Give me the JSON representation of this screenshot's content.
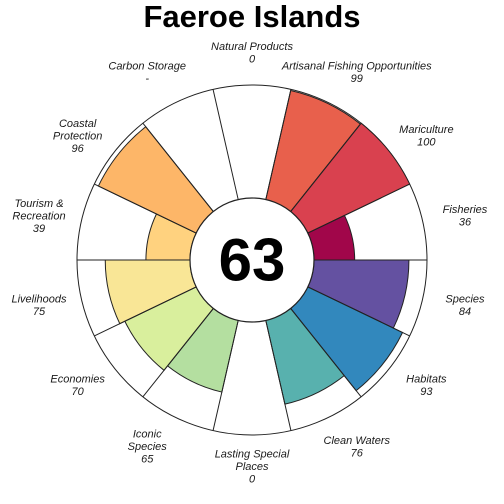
{
  "colors": {
    "outline": "#222222",
    "background": "#ffffff"
  },
  "chart_data": {
    "type": "circular-bar",
    "title": "Faeroe Islands",
    "center_score": "63",
    "scale_max": 100,
    "goals": [
      {
        "name": "Natural Products",
        "lines": [
          "Natural Products"
        ],
        "score": 0,
        "score_text": "0",
        "color": "#ffffff"
      },
      {
        "name": "Artisanal Fishing Opportunities",
        "lines": [
          "Artisanal Fishing Opportunities"
        ],
        "score": 99,
        "score_text": "99",
        "color": "#e8604c"
      },
      {
        "name": "Mariculture",
        "lines": [
          "Mariculture"
        ],
        "score": 100,
        "score_text": "100",
        "color": "#d9414f"
      },
      {
        "name": "Fisheries",
        "lines": [
          "Fisheries"
        ],
        "score": 36,
        "score_text": "36",
        "color": "#a1064a"
      },
      {
        "name": "Species",
        "lines": [
          "Species"
        ],
        "score": 84,
        "score_text": "84",
        "color": "#6451a1"
      },
      {
        "name": "Habitats",
        "lines": [
          "Habitats"
        ],
        "score": 93,
        "score_text": "93",
        "color": "#3288bd"
      },
      {
        "name": "Clean Waters",
        "lines": [
          "Clean Waters"
        ],
        "score": 76,
        "score_text": "76",
        "color": "#58b1ae"
      },
      {
        "name": "Lasting Special Places",
        "lines": [
          "Lasting Special",
          "Places"
        ],
        "score": 0,
        "score_text": "0",
        "color": "#ffffff"
      },
      {
        "name": "Iconic Species",
        "lines": [
          "Iconic",
          "Species"
        ],
        "score": 65,
        "score_text": "65",
        "color": "#b4dfa0"
      },
      {
        "name": "Economies",
        "lines": [
          "Economies"
        ],
        "score": 70,
        "score_text": "70",
        "color": "#d9ef9d"
      },
      {
        "name": "Livelihoods",
        "lines": [
          "Livelihoods"
        ],
        "score": 75,
        "score_text": "75",
        "color": "#f9e696"
      },
      {
        "name": "Tourism & Recreation",
        "lines": [
          "Tourism &",
          "Recreation"
        ],
        "score": 39,
        "score_text": "39",
        "color": "#ffd27f"
      },
      {
        "name": "Coastal Protection",
        "lines": [
          "Coastal",
          "Protection"
        ],
        "score": 96,
        "score_text": "96",
        "color": "#fdb668"
      },
      {
        "name": "Carbon Storage",
        "lines": [
          "Carbon Storage"
        ],
        "score": null,
        "score_text": "-",
        "color": "#ffffff"
      }
    ]
  }
}
